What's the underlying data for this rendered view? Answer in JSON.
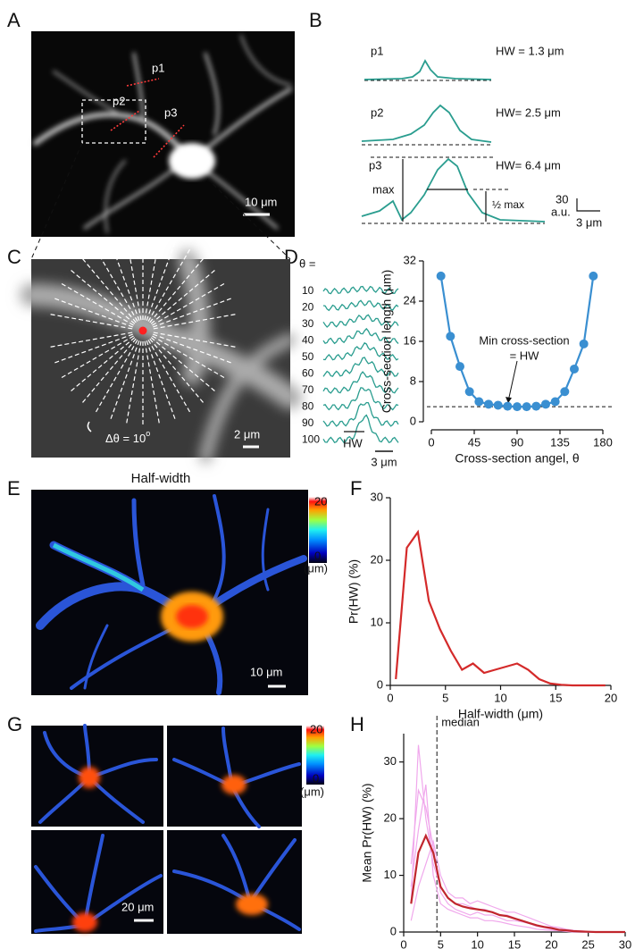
{
  "panel_labels": [
    "A",
    "B",
    "C",
    "D",
    "E",
    "F",
    "G",
    "H"
  ],
  "panel_a": {
    "profiles": [
      "p1",
      "p2",
      "p3"
    ],
    "scale_bar": "10 μm"
  },
  "panel_b": {
    "profiles": [
      "p1",
      "p2",
      "p3"
    ],
    "half_widths": [
      "HW = 1.3 μm",
      "HW= 2.5 μm",
      "HW= 6.4 μm"
    ],
    "max": "max",
    "half_max": "½ max",
    "scale_y": [
      "30",
      "a.u."
    ],
    "scale_x": "3 μm"
  },
  "panel_c": {
    "angle_step": "Δθ = 10",
    "degree": "o",
    "scale_bar": "2 μm"
  },
  "panel_d": {
    "theta": "θ =",
    "angles": [
      "10",
      "20",
      "30",
      "40",
      "50",
      "60",
      "70",
      "80",
      "90",
      "100"
    ],
    "hw": "HW",
    "scale_bar": "3 μm"
  },
  "panel_e": {
    "title": "Half-width",
    "colorbar": [
      "20",
      "0",
      "(μm)"
    ],
    "scale_bar": "10 μm"
  },
  "panel_g": {
    "colorbar": [
      "20",
      "0",
      "(μm)"
    ],
    "scale_bar": "20 μm"
  },
  "chart_data": [
    {
      "type": "line",
      "x": [
        10,
        20,
        30,
        40,
        50,
        60,
        70,
        80,
        90,
        100,
        110,
        120,
        130,
        140,
        150,
        160,
        170
      ],
      "series": [
        {
          "color": "#3a8fd1",
          "values": [
            29,
            17,
            11,
            6,
            4,
            3.5,
            3.3,
            3.1,
            3,
            3,
            3.1,
            3.5,
            4,
            6,
            10.5,
            15.5,
            29
          ]
        }
      ],
      "markers": true,
      "hline": 3,
      "annotation": [
        "Min cross-section",
        "= HW"
      ],
      "xlim": [
        0,
        180
      ],
      "xticks": [
        0,
        45,
        90,
        135,
        180
      ],
      "ylim": [
        0,
        32
      ],
      "yticks": [
        0,
        8,
        16,
        24,
        32
      ],
      "xlabel": "Cross-section angel, θ",
      "ylabel": "Cross-section length (μm)"
    },
    {
      "type": "line",
      "x": [
        0.5,
        1.5,
        2.5,
        3.5,
        4.5,
        5.5,
        6.5,
        7.5,
        8.5,
        9.5,
        10.5,
        11.5,
        12.5,
        13.5,
        14.5,
        15.5,
        16.5,
        17.5,
        18.5,
        19.5
      ],
      "series": [
        {
          "color": "#d42a2a",
          "values": [
            1,
            22,
            24.5,
            13.5,
            9,
            5.5,
            2.5,
            3.5,
            2,
            2.5,
            3,
            3.5,
            2.5,
            1,
            0.3,
            0.1,
            0,
            0,
            0,
            0
          ]
        }
      ],
      "xlim": [
        0,
        20
      ],
      "xticks": [
        0,
        5,
        10,
        15,
        20
      ],
      "ylim": [
        0,
        30
      ],
      "yticks": [
        0,
        10,
        20,
        30
      ],
      "xlabel": "Half-width (μm)",
      "ylabel": "Pr(HW) (%)"
    },
    {
      "type": "line",
      "x": [
        1,
        2,
        3,
        4,
        5,
        6,
        7,
        8,
        9,
        10,
        11,
        12,
        13,
        14,
        15,
        16,
        17,
        18,
        19,
        20,
        21,
        22,
        23,
        24,
        25,
        26,
        27,
        28,
        29,
        30
      ],
      "series": [
        {
          "color": "#f0a8ec",
          "values": [
            5,
            33,
            20,
            12,
            8,
            6,
            5,
            5,
            4.5,
            4,
            4,
            3.5,
            3,
            3,
            2.5,
            2,
            1.5,
            1,
            0.8,
            0.5,
            0.3,
            0.2,
            0.1,
            0,
            0,
            0,
            0,
            0,
            0,
            0
          ]
        },
        {
          "color": "#f0a8ec",
          "values": [
            12,
            25,
            22,
            15,
            7,
            5,
            4,
            3.5,
            3,
            3.5,
            3,
            3,
            2.5,
            2,
            2,
            1.8,
            1.5,
            1.2,
            1,
            0.8,
            0.5,
            0.3,
            0.2,
            0.1,
            0,
            0,
            0,
            0,
            0,
            0
          ]
        },
        {
          "color": "#f0a8ec",
          "values": [
            2,
            8,
            12,
            16,
            10,
            7,
            6,
            6,
            5,
            5.5,
            5,
            4.5,
            4,
            3.5,
            3.5,
            3,
            2.5,
            2,
            1.5,
            1,
            0.8,
            0.5,
            0.3,
            0.2,
            0.1,
            0,
            0,
            0,
            0,
            0
          ]
        },
        {
          "color": "#f0a8ec",
          "values": [
            8,
            18,
            26,
            10,
            5,
            4,
            3.5,
            3,
            2.5,
            2.5,
            2,
            2,
            1.8,
            1.5,
            1.2,
            1,
            0.8,
            0.5,
            0.4,
            0.3,
            0.2,
            0.1,
            0,
            0,
            0,
            0,
            0,
            0,
            0,
            0
          ]
        },
        {
          "color": "#c0262d",
          "values": [
            5,
            14,
            17,
            14,
            8,
            6,
            5,
            4.5,
            4.2,
            4,
            3.8,
            3.5,
            3,
            2.8,
            2.4,
            2,
            1.6,
            1.2,
            0.9,
            0.7,
            0.4,
            0.3,
            0.15,
            0.1,
            0.05,
            0,
            0,
            0,
            0,
            0
          ]
        }
      ],
      "vline": 4.5,
      "vline_label": "median",
      "xlim": [
        0,
        30
      ],
      "xticks": [
        0,
        5,
        10,
        15,
        20,
        25,
        30
      ],
      "ylim": [
        0,
        35
      ],
      "yticks": [
        0,
        10,
        20,
        30
      ],
      "xlabel": "Half-width (μm)",
      "ylabel": "Mean Pr(HW) (%)"
    }
  ]
}
